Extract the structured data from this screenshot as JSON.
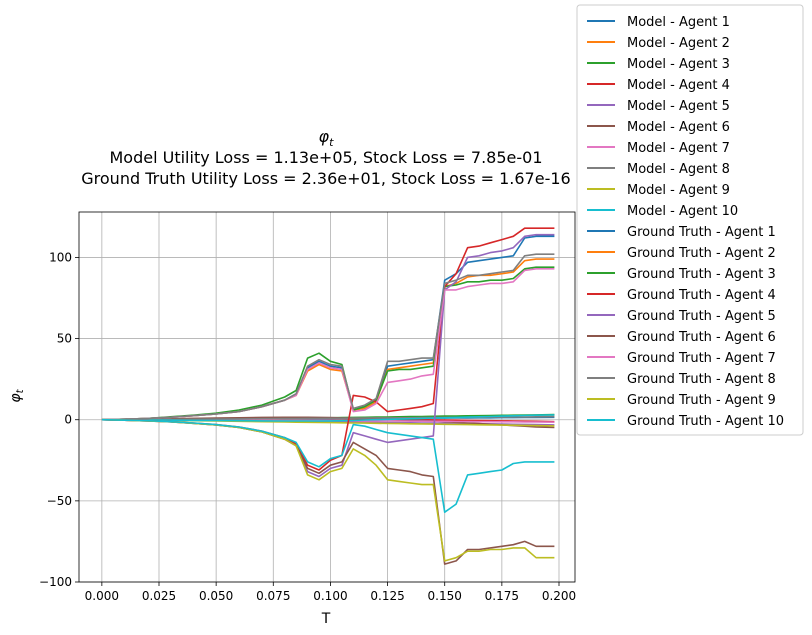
{
  "chart_data": {
    "type": "line",
    "title_symbol": "φ",
    "title_subscript": "t",
    "subtitle_lines": [
      "Model Utility Loss = 1.13e+05, Stock Loss = 7.85e-01",
      "Ground Truth Utility Loss = 2.36e+01, Stock Loss = 1.67e-16"
    ],
    "xlabel": "T",
    "ylabel_symbol": "φ",
    "ylabel_subscript": "t",
    "xlim": [
      -0.01,
      0.207
    ],
    "ylim": [
      -100,
      128
    ],
    "xticks": [
      0.0,
      0.025,
      0.05,
      0.075,
      0.1,
      0.125,
      0.15,
      0.175,
      0.2
    ],
    "xtick_labels": [
      "0.000",
      "0.025",
      "0.050",
      "0.075",
      "0.100",
      "0.125",
      "0.150",
      "0.175",
      "0.200"
    ],
    "yticks": [
      -100,
      -50,
      0,
      50,
      100
    ],
    "ytick_labels": [
      "−100",
      "−50",
      "0",
      "50",
      "100"
    ],
    "grid": true,
    "legend_position": "outside-top-right",
    "colors": [
      "#1f77b4",
      "#ff7f0e",
      "#2ca02c",
      "#d62728",
      "#9467bd",
      "#8c564b",
      "#e377c2",
      "#7f7f7f",
      "#bcbd22",
      "#17becf"
    ],
    "x": [
      0.0,
      0.01,
      0.02,
      0.03,
      0.04,
      0.05,
      0.06,
      0.07,
      0.08,
      0.085,
      0.09,
      0.095,
      0.1,
      0.105,
      0.11,
      0.115,
      0.12,
      0.125,
      0.13,
      0.135,
      0.14,
      0.145,
      0.15,
      0.155,
      0.16,
      0.165,
      0.17,
      0.175,
      0.18,
      0.185,
      0.19,
      0.198
    ],
    "series": [
      {
        "name": "Model - Agent 1",
        "values": [
          0,
          0,
          0.1,
          0.1,
          0.2,
          0.2,
          0.3,
          0.3,
          0.4,
          0.4,
          0.5,
          0.5,
          0.5,
          0.6,
          0.6,
          0.7,
          0.7,
          0.8,
          0.8,
          0.9,
          0.9,
          1.0,
          1.0,
          1.1,
          1.1,
          1.2,
          1.2,
          1.3,
          1.3,
          1.4,
          1.4,
          1.5
        ]
      },
      {
        "name": "Model - Agent 2",
        "values": [
          0,
          0,
          0.1,
          0.2,
          0.3,
          0.4,
          0.5,
          0.6,
          0.7,
          0.8,
          0.9,
          1.0,
          1.0,
          1.1,
          1.2,
          1.3,
          1.4,
          1.5,
          1.6,
          1.7,
          1.8,
          1.9,
          2.0,
          2.1,
          2.2,
          2.3,
          2.4,
          2.5,
          2.6,
          2.7,
          2.8,
          3.0
        ]
      },
      {
        "name": "Model - Agent 3",
        "values": [
          0,
          0.1,
          0.2,
          0.3,
          0.4,
          0.5,
          0.6,
          0.7,
          0.8,
          0.9,
          1.0,
          1.1,
          1.2,
          1.3,
          1.4,
          1.5,
          1.6,
          1.7,
          1.8,
          1.9,
          2.0,
          2.1,
          2.2,
          2.3,
          2.4,
          2.5,
          2.6,
          2.7,
          2.8,
          2.9,
          3.0,
          3.2
        ]
      },
      {
        "name": "Model - Agent 4",
        "values": [
          0,
          0.1,
          0.3,
          0.5,
          0.7,
          0.8,
          0.9,
          1.0,
          1.0,
          1.0,
          0.9,
          0.9,
          0.8,
          0.7,
          0.6,
          0.5,
          0.4,
          0.3,
          0.2,
          0.1,
          0.0,
          -0.1,
          -0.2,
          -0.3,
          -0.4,
          -0.5,
          -0.6,
          -0.7,
          -0.8,
          -0.9,
          -1.0,
          -1.2
        ]
      },
      {
        "name": "Model - Agent 5",
        "values": [
          0,
          -0.1,
          -0.2,
          -0.3,
          -0.4,
          -0.5,
          -0.6,
          -0.7,
          -0.8,
          -0.9,
          -1.0,
          -1.1,
          -1.2,
          -1.3,
          -1.4,
          -1.5,
          -1.6,
          -1.7,
          -1.8,
          -1.9,
          -2.0,
          -2.1,
          -2.2,
          -2.3,
          -2.4,
          -2.5,
          -2.6,
          -2.7,
          -2.8,
          -2.9,
          -3.0,
          -3.2
        ]
      },
      {
        "name": "Model - Agent 6",
        "values": [
          0,
          0.1,
          0.3,
          0.5,
          0.8,
          1.0,
          1.2,
          1.4,
          1.5,
          1.5,
          1.5,
          1.4,
          1.3,
          1.1,
          0.9,
          0.7,
          0.5,
          0.3,
          0.1,
          -0.2,
          -0.5,
          -0.8,
          -1.2,
          -1.6,
          -2.0,
          -2.4,
          -2.8,
          -3.2,
          -3.6,
          -4.0,
          -4.4,
          -4.8
        ]
      },
      {
        "name": "Model - Agent 7",
        "values": [
          0,
          0,
          -0.1,
          -0.1,
          -0.2,
          -0.2,
          -0.3,
          -0.3,
          -0.4,
          -0.4,
          -0.5,
          -0.5,
          -0.5,
          -0.6,
          -0.6,
          -0.7,
          -0.7,
          -0.8,
          -0.8,
          -0.9,
          -0.9,
          -1.0,
          -1.0,
          -1.1,
          -1.1,
          -1.2,
          -1.2,
          -1.3,
          -1.3,
          -1.4,
          -1.4,
          -1.5
        ]
      },
      {
        "name": "Model - Agent 8",
        "values": [
          0,
          0,
          0.1,
          0.2,
          0.3,
          0.4,
          0.5,
          0.6,
          0.7,
          0.7,
          0.8,
          0.8,
          0.9,
          0.9,
          1.0,
          1.0,
          1.1,
          1.1,
          1.2,
          1.2,
          1.3,
          1.3,
          1.4,
          1.4,
          1.5,
          1.5,
          1.6,
          1.6,
          1.7,
          1.7,
          1.8,
          1.9
        ]
      },
      {
        "name": "Model - Agent 9",
        "values": [
          0,
          -0.1,
          -0.2,
          -0.4,
          -0.6,
          -0.8,
          -1.0,
          -1.2,
          -1.4,
          -1.5,
          -1.6,
          -1.7,
          -1.8,
          -1.9,
          -2.0,
          -2.1,
          -2.2,
          -2.3,
          -2.4,
          -2.5,
          -2.6,
          -2.7,
          -2.8,
          -2.9,
          -3.0,
          -3.1,
          -3.2,
          -3.3,
          -3.4,
          -3.5,
          -3.6,
          -3.8
        ]
      },
      {
        "name": "Model - Agent 10",
        "values": [
          0,
          -0.1,
          -0.2,
          -0.3,
          -0.4,
          -0.5,
          -0.6,
          -0.7,
          -0.8,
          -0.8,
          -0.8,
          -0.8,
          -0.7,
          -0.6,
          -0.4,
          -0.2,
          0.0,
          0.2,
          0.4,
          0.6,
          0.8,
          1.0,
          1.2,
          1.4,
          1.6,
          1.8,
          2.0,
          2.2,
          2.4,
          2.6,
          2.8,
          3.0
        ]
      },
      {
        "name": "Ground Truth - Agent 1",
        "values": [
          0,
          0.3,
          0.8,
          1.5,
          2.5,
          3.5,
          5,
          8,
          12,
          16,
          32,
          36,
          33,
          32,
          6,
          8,
          12,
          33,
          34,
          35,
          36,
          37,
          86,
          90,
          97,
          98,
          99,
          100,
          101,
          112,
          113,
          113
        ]
      },
      {
        "name": "Ground Truth - Agent 2",
        "values": [
          0,
          0.3,
          0.8,
          1.5,
          2.5,
          3.5,
          5,
          8,
          12,
          15,
          30,
          34,
          31,
          30,
          6,
          7,
          11,
          31,
          32,
          33,
          34,
          35,
          82,
          84,
          88,
          89,
          89,
          90,
          91,
          98,
          99,
          99
        ]
      },
      {
        "name": "Ground Truth - Agent 3",
        "values": [
          0,
          0.3,
          0.8,
          1.8,
          2.8,
          4.0,
          6,
          9,
          14,
          18,
          38,
          41,
          36,
          34,
          6,
          8,
          12,
          30,
          31,
          31,
          32,
          33,
          82,
          83,
          85,
          85,
          86,
          86,
          87,
          93,
          94,
          94
        ]
      },
      {
        "name": "Ground Truth - Agent 4",
        "values": [
          0,
          -0.3,
          -0.6,
          -1.2,
          -2.0,
          -3.0,
          -4.5,
          -7,
          -11,
          -15,
          -28,
          -31,
          -25,
          -22,
          15,
          14,
          11,
          5,
          6,
          7,
          8,
          10,
          82,
          90,
          106,
          107,
          109,
          111,
          113,
          118,
          118,
          118
        ]
      },
      {
        "name": "Ground Truth - Agent 5",
        "values": [
          0,
          -0.3,
          -0.7,
          -1.3,
          -2.2,
          -3.2,
          -4.8,
          -7.5,
          -12,
          -16,
          -32,
          -35,
          -30,
          -28,
          -8,
          -10,
          -12,
          -14,
          -13,
          -12,
          -11,
          -10,
          80,
          85,
          100,
          101,
          103,
          104,
          106,
          113,
          114,
          114
        ]
      },
      {
        "name": "Ground Truth - Agent 6",
        "values": [
          0,
          -0.3,
          -0.7,
          -1.3,
          -2.2,
          -3.2,
          -4.8,
          -7.5,
          -12,
          -16,
          -30,
          -33,
          -28,
          -26,
          -14,
          -18,
          -22,
          -30,
          -31,
          -32,
          -34,
          -35,
          -89,
          -87,
          -80,
          -80,
          -79,
          -78,
          -77,
          -75,
          -78,
          -78
        ]
      },
      {
        "name": "Ground Truth - Agent 7",
        "values": [
          0,
          0.3,
          0.8,
          1.5,
          2.5,
          3.5,
          5,
          8,
          12,
          15,
          31,
          35,
          32,
          31,
          5,
          6,
          10,
          23,
          24,
          25,
          27,
          28,
          80,
          80,
          82,
          83,
          84,
          84,
          85,
          92,
          93,
          93
        ]
      },
      {
        "name": "Ground Truth - Agent 8",
        "values": [
          0,
          0.3,
          0.8,
          1.5,
          2.5,
          3.5,
          5,
          8,
          12,
          16,
          33,
          37,
          34,
          33,
          7,
          9,
          13,
          36,
          36,
          37,
          38,
          38,
          84,
          86,
          89,
          89,
          90,
          91,
          92,
          101,
          102,
          102
        ]
      },
      {
        "name": "Ground Truth - Agent 9",
        "values": [
          0,
          -0.3,
          -0.7,
          -1.3,
          -2.2,
          -3.2,
          -4.8,
          -7.5,
          -12,
          -16,
          -34,
          -37,
          -32,
          -30,
          -18,
          -22,
          -28,
          -37,
          -38,
          -39,
          -40,
          -40,
          -87,
          -85,
          -81,
          -81,
          -80,
          -80,
          -79,
          -79,
          -85,
          -85
        ]
      },
      {
        "name": "Ground Truth - Agent 10",
        "values": [
          0,
          -0.3,
          -0.6,
          -1.2,
          -2.0,
          -3.0,
          -4.5,
          -7,
          -11,
          -14,
          -26,
          -29,
          -24,
          -22,
          -3,
          -4,
          -6,
          -8,
          -9,
          -10,
          -11,
          -12,
          -57,
          -52,
          -34,
          -33,
          -32,
          -31,
          -27,
          -26,
          -26,
          -26
        ]
      }
    ]
  }
}
